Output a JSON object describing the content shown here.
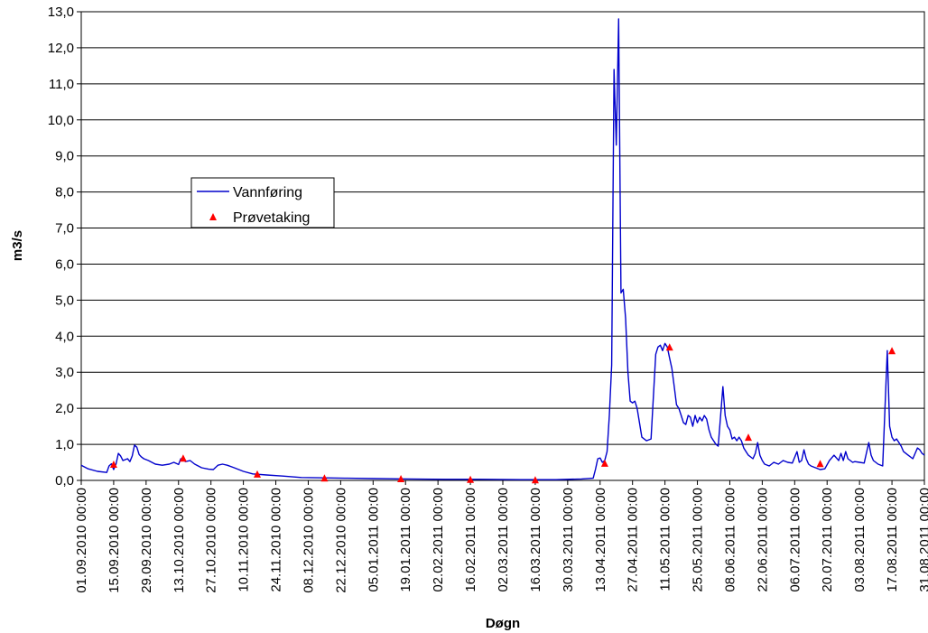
{
  "chart_data": {
    "type": "line",
    "title": "",
    "xlabel": "Døgn",
    "ylabel": "m3/s",
    "ylim": [
      0,
      13
    ],
    "yticks": [
      "0,0",
      "1,0",
      "2,0",
      "3,0",
      "4,0",
      "5,0",
      "6,0",
      "7,0",
      "8,0",
      "9,0",
      "10,0",
      "11,0",
      "12,0",
      "13,0"
    ],
    "xlim": [
      "2010-09-01",
      "2011-08-31"
    ],
    "xticks": [
      "01.09.2010 00:00",
      "15.09.2010 00:00",
      "29.09.2010 00:00",
      "13.10.2010 00:00",
      "27.10.2010 00:00",
      "10.11.2010 00:00",
      "24.11.2010 00:00",
      "08.12.2010 00:00",
      "22.12.2010 00:00",
      "05.01.2011 00:00",
      "19.01.2011 00:00",
      "02.02.2011 00:00",
      "16.02.2011 00:00",
      "02.03.2011 00:00",
      "16.03.2011 00:00",
      "30.03.2011 00:00",
      "13.04.2011 00:00",
      "27.04.2011 00:00",
      "11.05.2011 00:00",
      "25.05.2011 00:00",
      "08.06.2011 00:00",
      "22.06.2011 00:00",
      "06.07.2011 00:00",
      "20.07.2011 00:00",
      "03.08.2011 00:00",
      "17.08.2011 00:00",
      "31.08.2011 00:00"
    ],
    "grid": "horizontal",
    "legend_position": "upper-left",
    "colors": {
      "line": "#0000cc",
      "marker": "#ff0000",
      "grid": "#000000"
    },
    "series": [
      {
        "name": "Vannføring",
        "style": "line",
        "x": [
          "2010-09-01",
          "2010-09-04",
          "2010-09-08",
          "2010-09-12",
          "2010-09-13",
          "2010-09-14",
          "2010-09-15",
          "2010-09-16",
          "2010-09-17",
          "2010-09-18",
          "2010-09-19",
          "2010-09-21",
          "2010-09-22",
          "2010-09-23",
          "2010-09-24",
          "2010-09-25",
          "2010-09-26",
          "2010-09-27",
          "2010-09-28",
          "2010-09-30",
          "2010-10-03",
          "2010-10-06",
          "2010-10-09",
          "2010-10-11",
          "2010-10-13",
          "2010-10-14",
          "2010-10-16",
          "2010-10-18",
          "2010-10-20",
          "2010-10-23",
          "2010-10-26",
          "2010-10-28",
          "2010-10-30",
          "2010-11-01",
          "2010-11-03",
          "2010-11-06",
          "2010-11-10",
          "2010-11-14",
          "2010-11-20",
          "2010-11-27",
          "2010-12-05",
          "2010-12-15",
          "2010-12-25",
          "2011-01-05",
          "2011-01-20",
          "2011-02-05",
          "2011-02-20",
          "2011-03-10",
          "2011-03-25",
          "2011-04-05",
          "2011-04-10",
          "2011-04-11",
          "2011-04-12",
          "2011-04-13",
          "2011-04-14",
          "2011-04-15",
          "2011-04-16",
          "2011-04-17",
          "2011-04-18",
          "2011-04-19",
          "2011-04-20",
          "2011-04-21",
          "2011-04-22",
          "2011-04-23",
          "2011-04-24",
          "2011-04-25",
          "2011-04-26",
          "2011-04-27",
          "2011-04-28",
          "2011-04-29",
          "2011-05-01",
          "2011-05-03",
          "2011-05-05",
          "2011-05-07",
          "2011-05-08",
          "2011-05-09",
          "2011-05-10",
          "2011-05-11",
          "2011-05-12",
          "2011-05-13",
          "2011-05-14",
          "2011-05-15",
          "2011-05-16",
          "2011-05-17",
          "2011-05-18",
          "2011-05-19",
          "2011-05-20",
          "2011-05-21",
          "2011-05-22",
          "2011-05-23",
          "2011-05-24",
          "2011-05-25",
          "2011-05-26",
          "2011-05-27",
          "2011-05-28",
          "2011-05-29",
          "2011-05-30",
          "2011-05-31",
          "2011-06-01",
          "2011-06-02",
          "2011-06-03",
          "2011-06-05",
          "2011-06-06",
          "2011-06-07",
          "2011-06-08",
          "2011-06-09",
          "2011-06-10",
          "2011-06-11",
          "2011-06-12",
          "2011-06-13",
          "2011-06-14",
          "2011-06-15",
          "2011-06-16",
          "2011-06-18",
          "2011-06-19",
          "2011-06-20",
          "2011-06-21",
          "2011-06-22",
          "2011-06-23",
          "2011-06-25",
          "2011-06-27",
          "2011-06-29",
          "2011-07-01",
          "2011-07-03",
          "2011-07-05",
          "2011-07-07",
          "2011-07-08",
          "2011-07-09",
          "2011-07-10",
          "2011-07-11",
          "2011-07-12",
          "2011-07-13",
          "2011-07-15",
          "2011-07-17",
          "2011-07-19",
          "2011-07-21",
          "2011-07-23",
          "2011-07-25",
          "2011-07-26",
          "2011-07-27",
          "2011-07-28",
          "2011-07-29",
          "2011-07-30",
          "2011-07-31",
          "2011-08-01",
          "2011-08-03",
          "2011-08-05",
          "2011-08-07",
          "2011-08-08",
          "2011-08-09",
          "2011-08-11",
          "2011-08-13",
          "2011-08-15",
          "2011-08-16",
          "2011-08-17",
          "2011-08-18",
          "2011-08-19",
          "2011-08-20",
          "2011-08-21",
          "2011-08-22",
          "2011-08-24",
          "2011-08-26",
          "2011-08-28",
          "2011-08-29",
          "2011-08-30",
          "2011-08-31"
        ],
        "values": [
          0.42,
          0.32,
          0.25,
          0.22,
          0.4,
          0.46,
          0.3,
          0.45,
          0.75,
          0.68,
          0.55,
          0.6,
          0.52,
          0.68,
          0.98,
          0.92,
          0.72,
          0.65,
          0.6,
          0.55,
          0.45,
          0.42,
          0.45,
          0.5,
          0.44,
          0.6,
          0.52,
          0.55,
          0.45,
          0.35,
          0.31,
          0.3,
          0.42,
          0.45,
          0.42,
          0.35,
          0.25,
          0.18,
          0.15,
          0.12,
          0.08,
          0.07,
          0.06,
          0.05,
          0.04,
          0.03,
          0.03,
          0.02,
          0.02,
          0.04,
          0.06,
          0.3,
          0.6,
          0.62,
          0.5,
          0.55,
          0.8,
          1.8,
          3.2,
          11.4,
          9.3,
          12.8,
          5.2,
          5.3,
          4.5,
          3.0,
          2.2,
          2.15,
          2.2,
          2.0,
          1.2,
          1.1,
          1.15,
          3.5,
          3.7,
          3.75,
          3.6,
          3.8,
          3.7,
          3.4,
          3.1,
          2.6,
          2.1,
          2.0,
          1.8,
          1.6,
          1.55,
          1.8,
          1.75,
          1.5,
          1.8,
          1.6,
          1.75,
          1.65,
          1.8,
          1.7,
          1.4,
          1.2,
          1.1,
          1.0,
          0.95,
          2.6,
          1.8,
          1.5,
          1.4,
          1.15,
          1.2,
          1.1,
          1.2,
          1.1,
          0.9,
          0.8,
          0.7,
          0.6,
          0.75,
          1.05,
          0.7,
          0.55,
          0.45,
          0.4,
          0.5,
          0.45,
          0.55,
          0.5,
          0.48,
          0.8,
          0.5,
          0.55,
          0.85,
          0.6,
          0.45,
          0.4,
          0.35,
          0.3,
          0.32,
          0.55,
          0.7,
          0.55,
          0.75,
          0.55,
          0.8,
          0.6,
          0.55,
          0.5,
          0.52,
          0.5,
          0.48,
          1.05,
          0.7,
          0.55,
          0.45,
          0.4,
          3.6,
          1.5,
          1.2,
          1.1,
          1.15,
          1.05,
          0.95,
          0.8,
          0.7,
          0.6,
          0.9,
          0.85,
          0.75,
          0.7
        ]
      },
      {
        "name": "Prøvetaking",
        "style": "marker",
        "x": [
          "2010-09-15",
          "2010-10-15",
          "2010-11-16",
          "2010-12-15",
          "2011-01-17",
          "2011-02-16",
          "2011-03-16",
          "2011-04-15",
          "2011-05-13",
          "2011-06-16",
          "2011-07-17",
          "2011-08-17"
        ],
        "values": [
          0.45,
          0.62,
          0.18,
          0.07,
          0.05,
          0.03,
          0.02,
          0.48,
          3.7,
          1.2,
          0.47,
          3.6
        ]
      }
    ]
  }
}
